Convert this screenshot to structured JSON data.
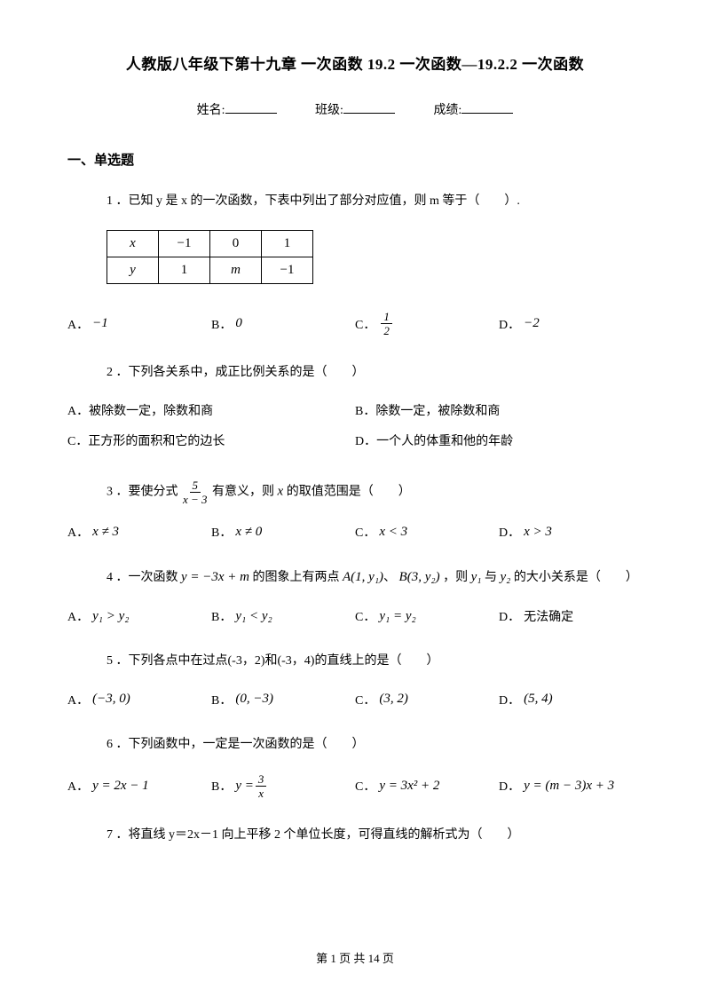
{
  "title": "人教版八年级下第十九章 一次函数 19.2 一次函数—19.2.2 一次函数",
  "info": {
    "name_label": "姓名:",
    "class_label": "班级:",
    "score_label": "成绩:"
  },
  "section1": "一、单选题",
  "q1": {
    "text": "1 ．已知 y 是 x 的一次函数，下表中列出了部分对应值，则 m 等于（　　）.",
    "table": {
      "rows": [
        [
          "x",
          "−1",
          "0",
          "1"
        ],
        [
          "y",
          "1",
          "m",
          "−1"
        ]
      ]
    },
    "opts": {
      "A": "−1",
      "B": "0",
      "C_is_frac": true,
      "C_num": "1",
      "C_den": "2",
      "D": "−2"
    }
  },
  "q2": {
    "text": "2 ．下列各关系中，成正比例关系的是（　　）",
    "opts": {
      "A": "被除数一定，除数和商",
      "B": "除数一定，被除数和商",
      "C": "正方形的面积和它的边长",
      "D": "一个人的体重和他的年龄"
    }
  },
  "q3": {
    "pre": "3 ．要使分式",
    "frac_num": "5",
    "frac_den": "x − 3",
    "mid": "有意义，则",
    "var": "x",
    "post": "的取值范围是（　　）",
    "opts": {
      "A": "x ≠ 3",
      "B": "x ≠ 0",
      "C": "x < 3",
      "D": "x > 3"
    }
  },
  "q4": {
    "pre": "4 ．一次函数",
    "eq": "y = −3x + m",
    "mid1": "的图象上有两点",
    "ptA": "A(1, y₁)",
    "sep": "、",
    "ptB": "B(3, y₂)",
    "mid2": "，则",
    "y1": "y₁",
    "and": "与",
    "y2": "y₂",
    "post": "的大小关系是（　　）",
    "opts": {
      "A": "y₁ > y₂",
      "B": "y₁ < y₂",
      "C": "y₁ = y₂",
      "D": "无法确定"
    }
  },
  "q5": {
    "text": "5 ．下列各点中在过点(-3，2)和(-3，4)的直线上的是（　　）",
    "opts": {
      "A": "(−3, 0)",
      "B": "(0, −3)",
      "C": "(3, 2)",
      "D": "(5, 4)"
    }
  },
  "q6": {
    "text": "6 ．下列函数中，一定是一次函数的是（　　）",
    "opts": {
      "A": "y = 2x − 1",
      "B_is_frac": true,
      "B_pre": "y =",
      "B_num": "3",
      "B_den": "x",
      "C": "y = 3x² + 2",
      "D": "y = (m − 3)x + 3"
    }
  },
  "q7": {
    "text": "7 ．将直线 y＝2x－1 向上平移 2 个单位长度，可得直线的解析式为（　　）"
  },
  "footer": {
    "pre": "第 ",
    "page": "1",
    "mid": " 页 共 ",
    "total": "14",
    "post": " 页"
  },
  "labels": {
    "A": "A．",
    "B": "B．",
    "C": "C．",
    "D": "D．"
  }
}
